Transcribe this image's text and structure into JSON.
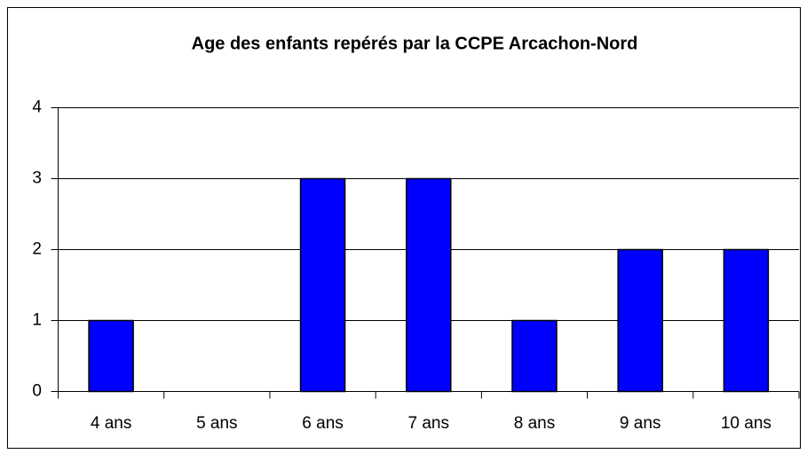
{
  "chart_data": {
    "type": "bar",
    "title": "Age des enfants repérés par la CCPE Arcachon-Nord",
    "categories": [
      "4 ans",
      "5 ans",
      "6 ans",
      "7 ans",
      "8 ans",
      "9 ans",
      "10 ans"
    ],
    "values": [
      1,
      0,
      3,
      3,
      1,
      2,
      2
    ],
    "color": "#0000ff",
    "ylim": [
      0,
      4
    ],
    "yticks": [
      0,
      1,
      2,
      3,
      4
    ],
    "grid": true
  }
}
